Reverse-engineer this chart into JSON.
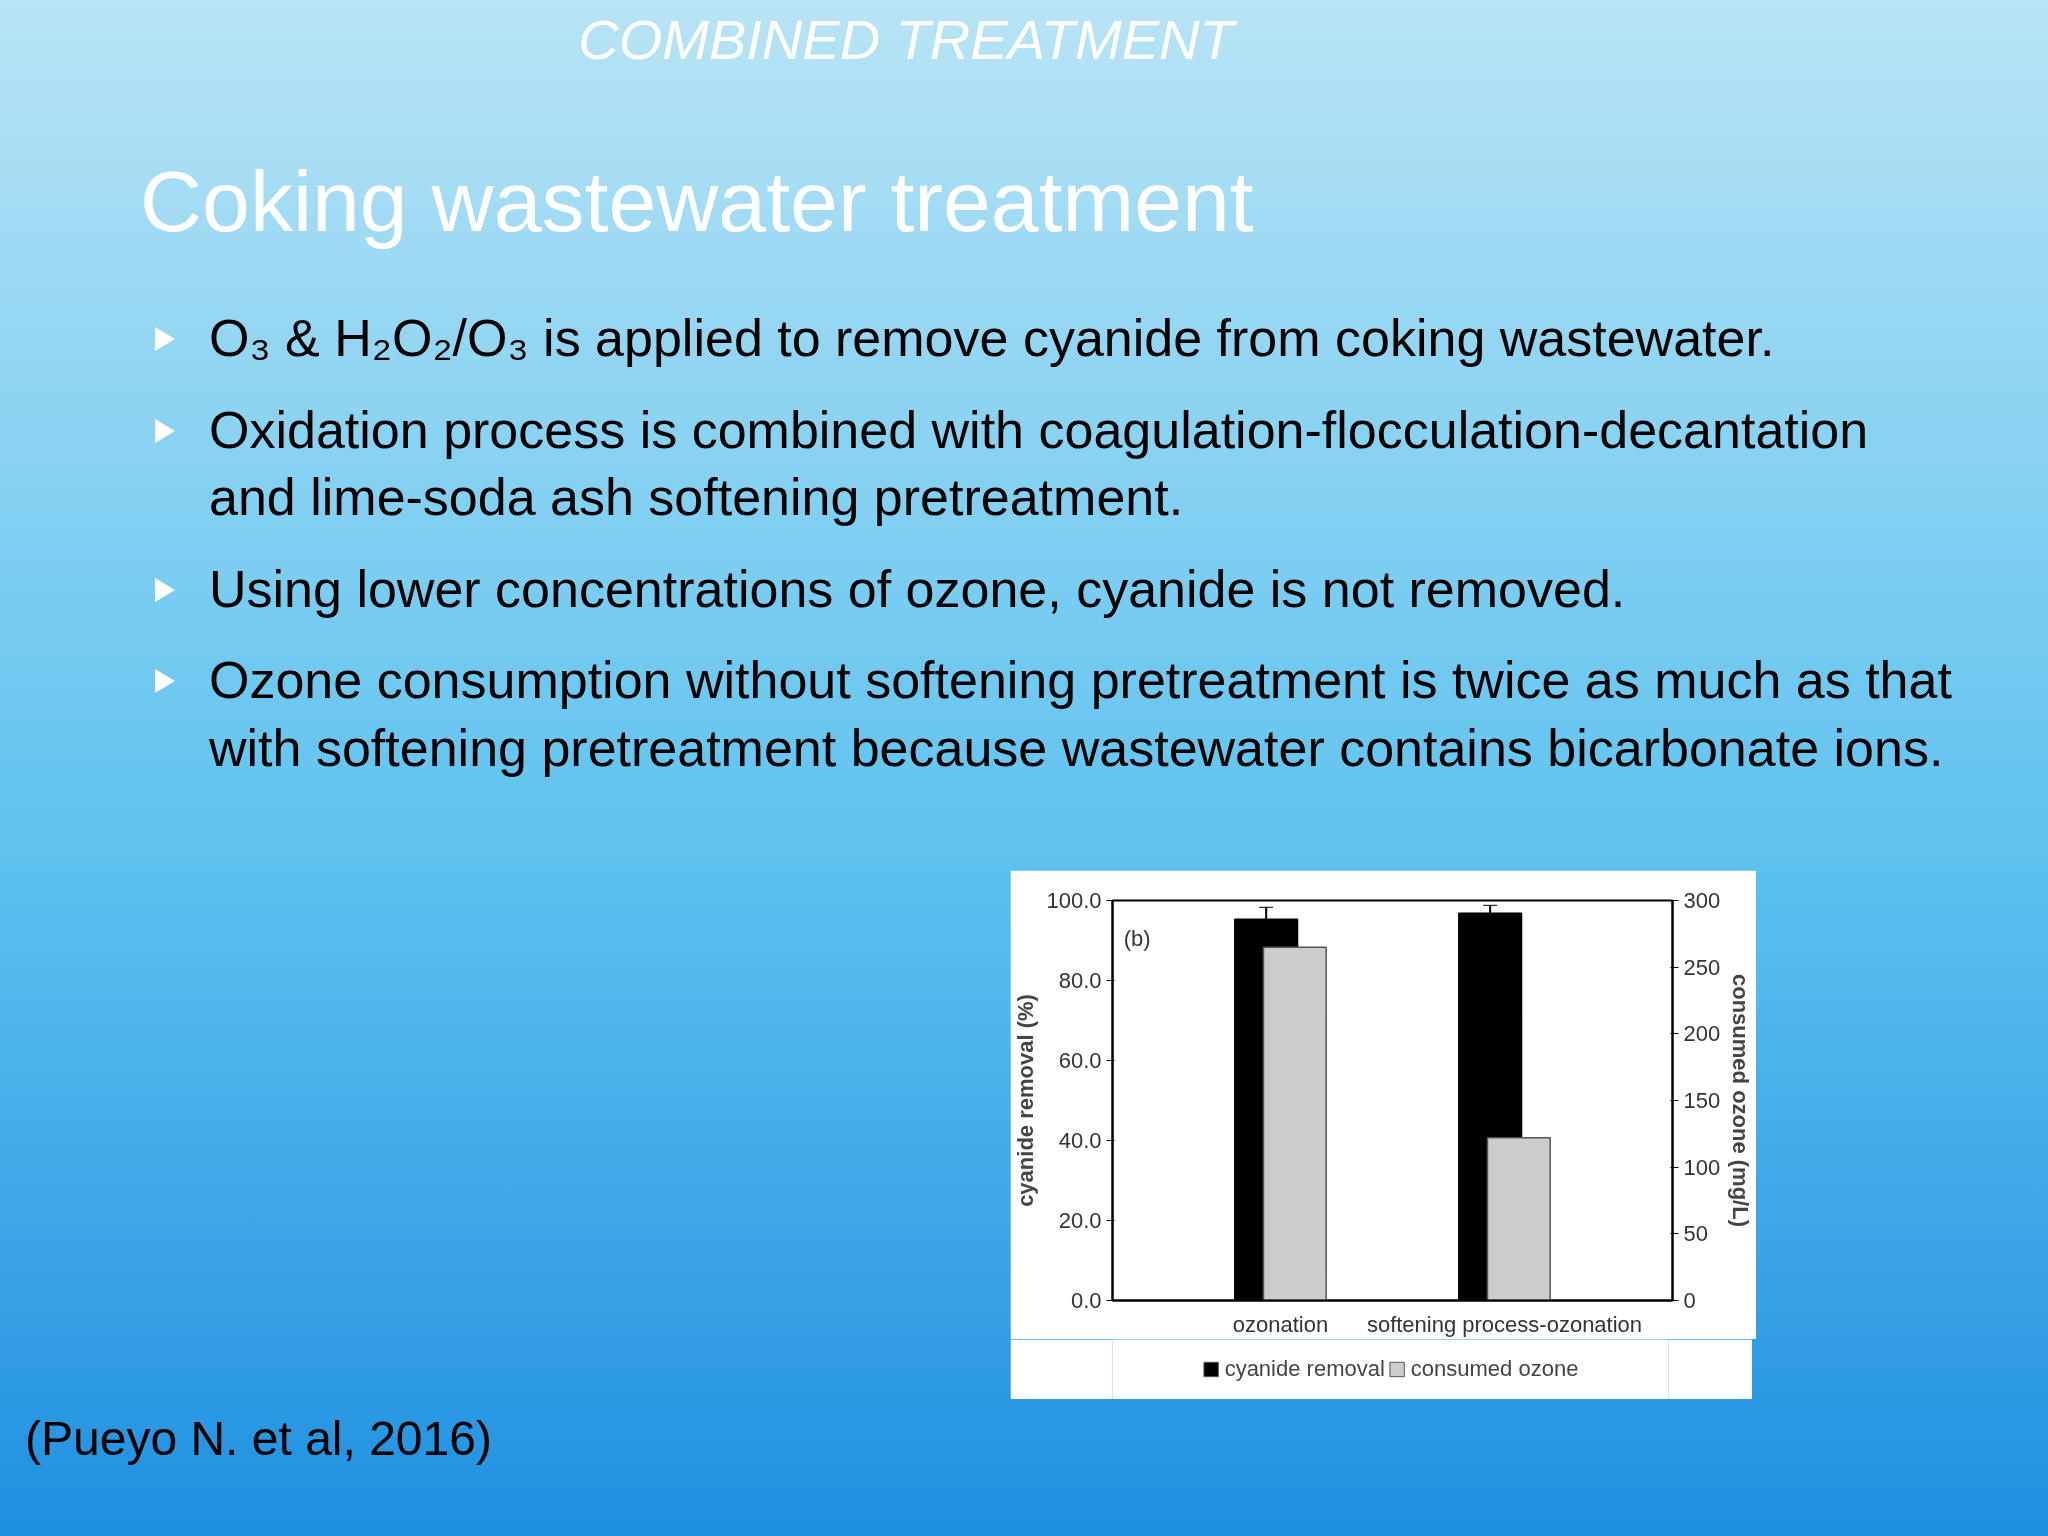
{
  "chart_data": {
    "type": "bar",
    "title": "Coking wastewater treatment",
    "subtitle": "COMBINED TREATMENT",
    "annotations": [
      "O₃ & H₂O₂/O₃ is applied to remove cyanide from coking wastewater.",
      "Oxidation process is combined with coagulation-flocculation-decantation and lime-soda ash softening pretreatment.",
      "Using lower concentrations of ozone, cyanide is not removed.",
      "Ozone consumption without softening pretreatment is twice as much as that with softening pretreatment because wastewater contains bicarbonate ions.",
      "(b)",
      "(Pueyo N. et al, 2016)"
    ],
    "categories": [
      "ozonation",
      "softening process-ozonation"
    ],
    "series": [
      {
        "name": "cyanide removal",
        "color": "#000000",
        "values": [
          95.3,
          96.8
        ],
        "errors": [
          3,
          2
        ]
      },
      {
        "name": "consumed ozone",
        "color": "#cccccc",
        "values": [
          265,
          122
        ],
        "axis": "y2"
      }
    ],
    "ylabel": "cyanide removal (%)",
    "y2label": "consumed ozone (mg/L)",
    "ylim": [
      0,
      100
    ],
    "yticks": [
      {
        "value": 0,
        "label": "0.0"
      },
      {
        "value": 20,
        "label": "20.0"
      },
      {
        "value": 40,
        "label": "40.0"
      },
      {
        "value": 60,
        "label": "60.0"
      },
      {
        "value": 80,
        "label": "80.0"
      },
      {
        "value": 100,
        "label": "100.0"
      }
    ],
    "y2lim": [
      0,
      300
    ],
    "y2ticks": [
      0,
      50,
      100,
      150,
      200,
      250,
      300
    ],
    "grid": false,
    "legend": "bottom"
  }
}
